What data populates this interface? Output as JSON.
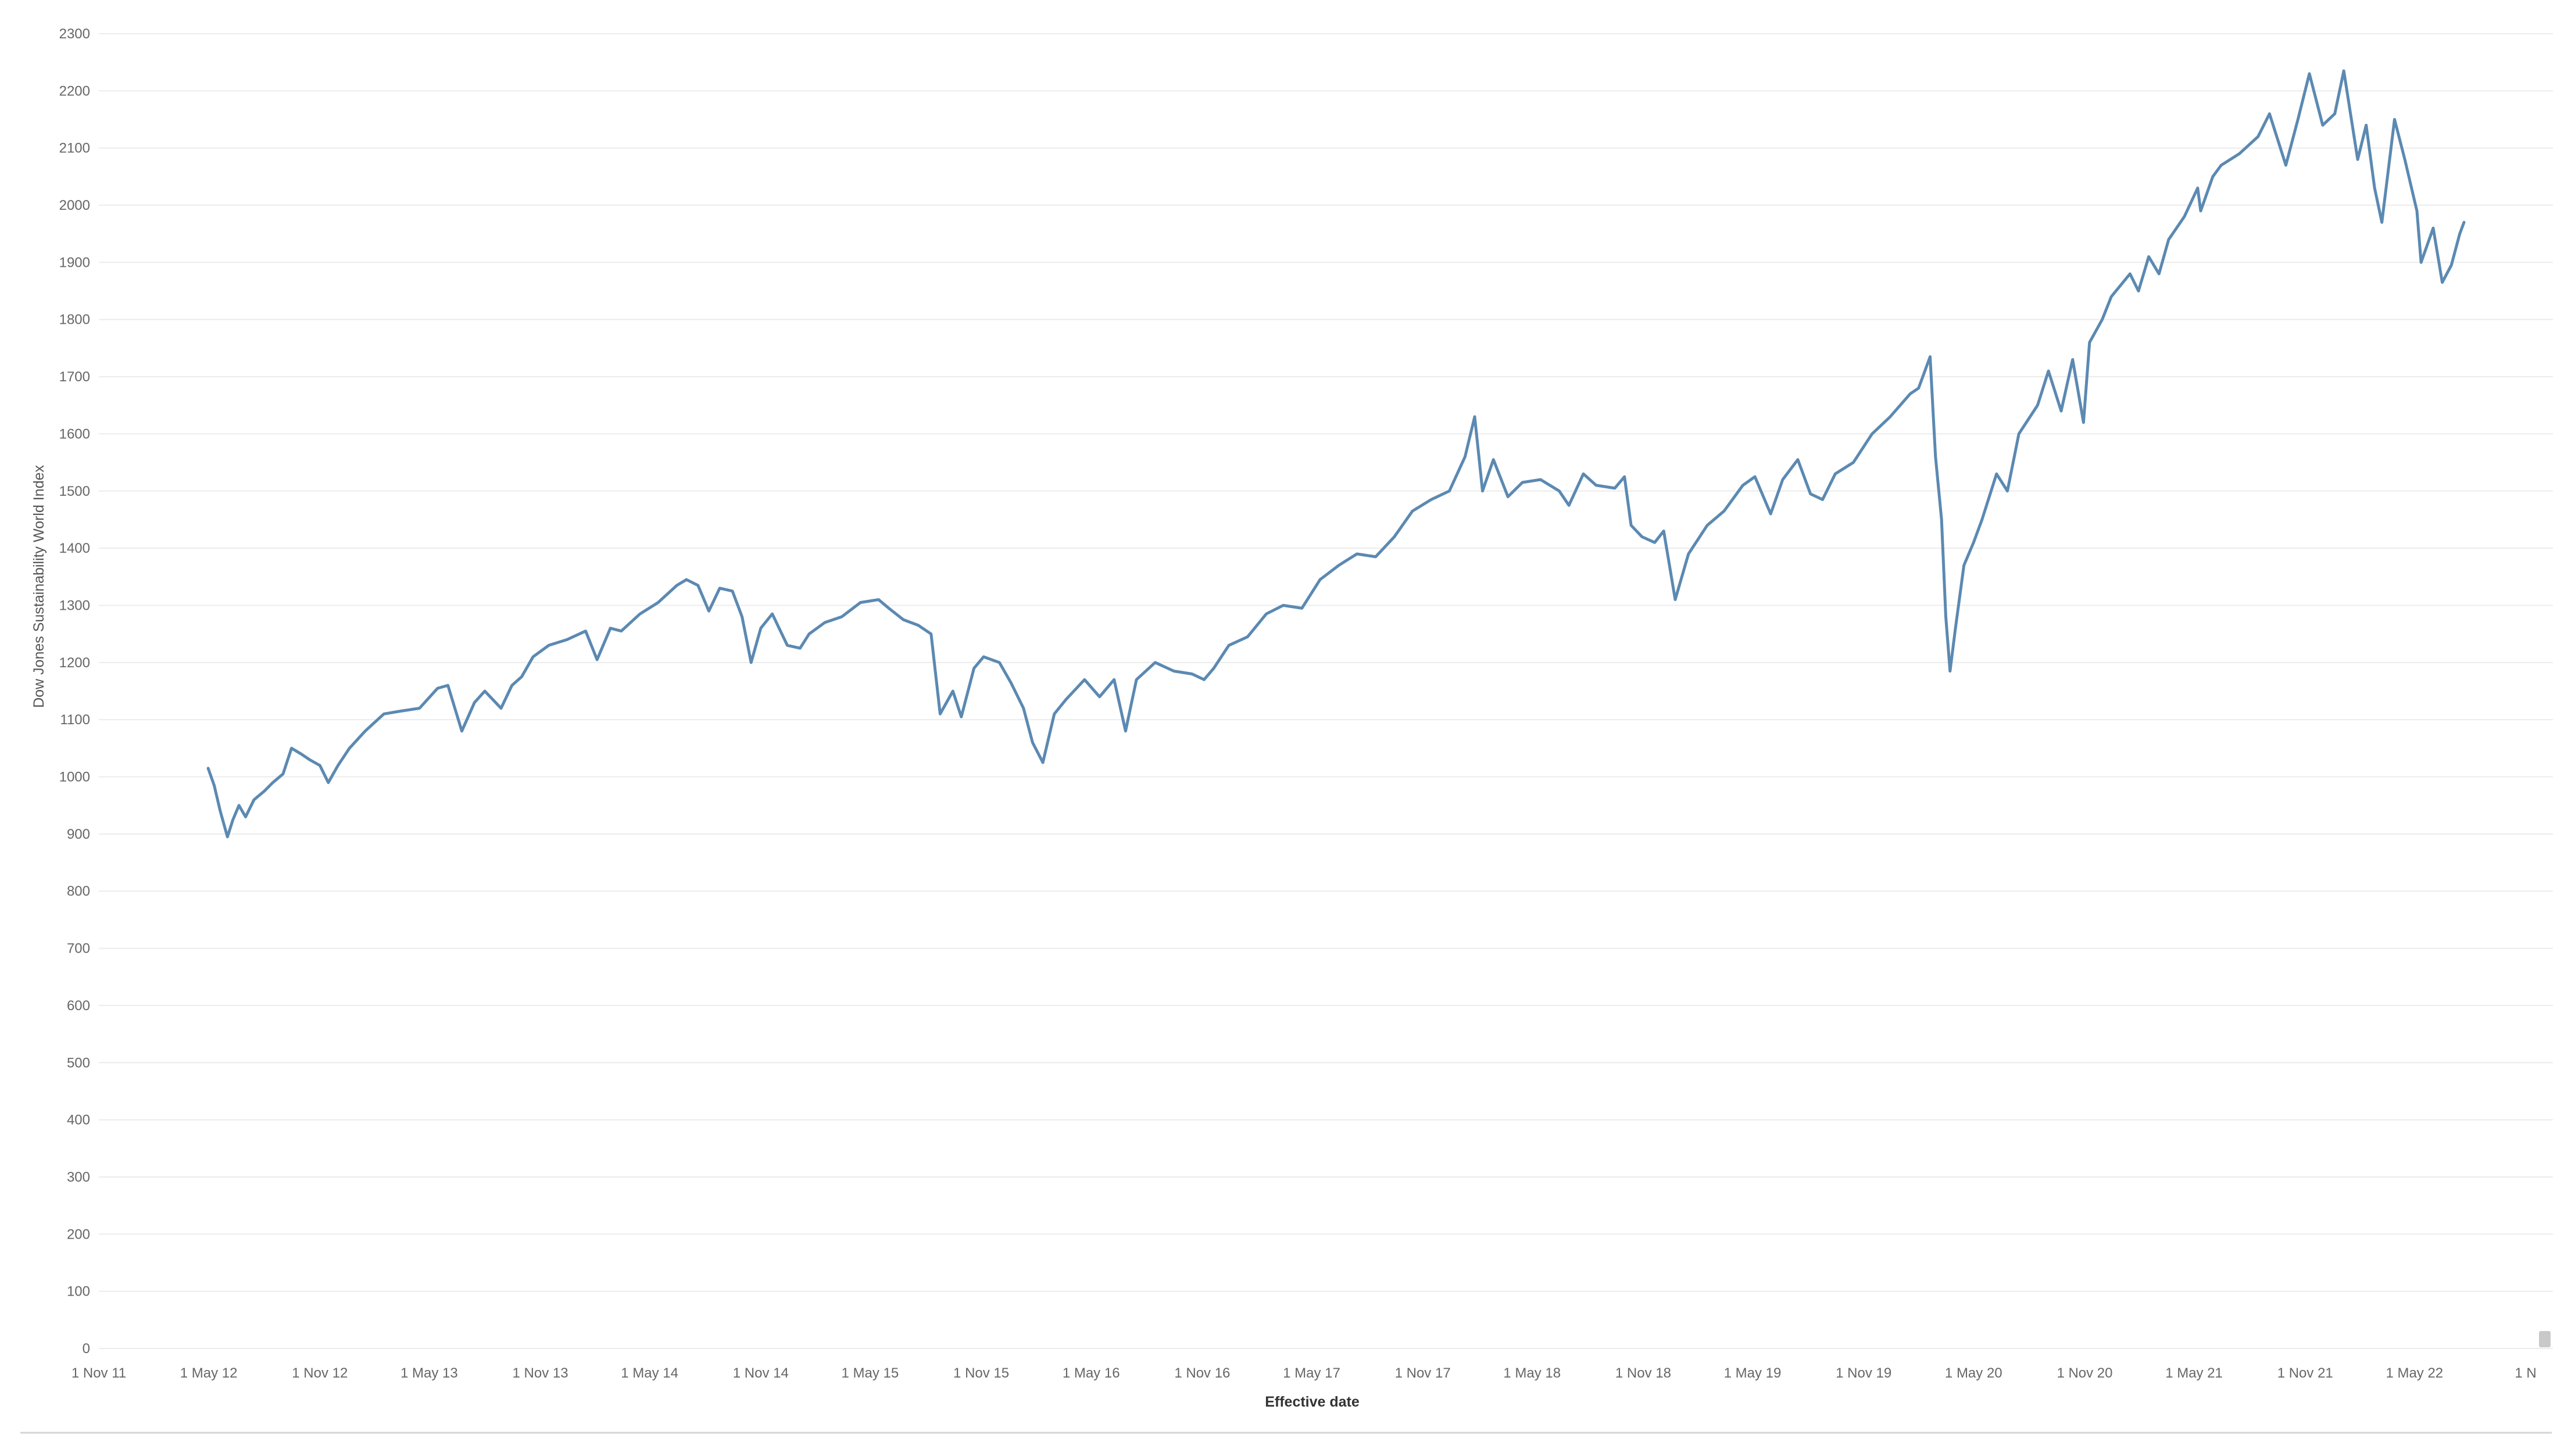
{
  "chart_data": {
    "type": "line",
    "xlabel": "Effective date",
    "ylabel": "Dow Jones Sustainability World Index",
    "ylim": [
      0,
      2300
    ],
    "y_ticks": [
      0,
      100,
      200,
      300,
      400,
      500,
      600,
      700,
      800,
      900,
      1000,
      1100,
      1200,
      1300,
      1400,
      1500,
      1600,
      1700,
      1800,
      1900,
      2000,
      2100,
      2200,
      2300
    ],
    "x_range": [
      "2011-11-01",
      "2022-11-01"
    ],
    "x_ticks": [
      {
        "date": "2011-11-01",
        "label": "1 Nov 11"
      },
      {
        "date": "2012-05-01",
        "label": "1 May 12"
      },
      {
        "date": "2012-11-01",
        "label": "1 Nov 12"
      },
      {
        "date": "2013-05-01",
        "label": "1 May 13"
      },
      {
        "date": "2013-11-01",
        "label": "1 Nov 13"
      },
      {
        "date": "2014-05-01",
        "label": "1 May 14"
      },
      {
        "date": "2014-11-01",
        "label": "1 Nov 14"
      },
      {
        "date": "2015-05-01",
        "label": "1 May 15"
      },
      {
        "date": "2015-11-01",
        "label": "1 Nov 15"
      },
      {
        "date": "2016-05-01",
        "label": "1 May 16"
      },
      {
        "date": "2016-11-01",
        "label": "1 Nov 16"
      },
      {
        "date": "2017-05-01",
        "label": "1 May 17"
      },
      {
        "date": "2017-11-01",
        "label": "1 Nov 17"
      },
      {
        "date": "2018-05-01",
        "label": "1 May 18"
      },
      {
        "date": "2018-11-01",
        "label": "1 Nov 18"
      },
      {
        "date": "2019-05-01",
        "label": "1 May 19"
      },
      {
        "date": "2019-11-01",
        "label": "1 Nov 19"
      },
      {
        "date": "2020-05-01",
        "label": "1 May 20"
      },
      {
        "date": "2020-11-01",
        "label": "1 Nov 20"
      },
      {
        "date": "2021-05-01",
        "label": "1 May 21"
      },
      {
        "date": "2021-11-01",
        "label": "1 Nov 21"
      },
      {
        "date": "2022-05-01",
        "label": "1 May 22"
      },
      {
        "date": "2022-11-01",
        "label": "1 N"
      }
    ],
    "grid": "horizontal",
    "legend": "none",
    "color": "#5b89b2",
    "series": [
      {
        "points": [
          [
            "2012-04-30",
            1015
          ],
          [
            "2012-05-10",
            985
          ],
          [
            "2012-05-20",
            940
          ],
          [
            "2012-06-01",
            895
          ],
          [
            "2012-06-10",
            925
          ],
          [
            "2012-06-20",
            950
          ],
          [
            "2012-07-01",
            930
          ],
          [
            "2012-07-15",
            960
          ],
          [
            "2012-08-01",
            975
          ],
          [
            "2012-08-15",
            990
          ],
          [
            "2012-09-01",
            1005
          ],
          [
            "2012-09-15",
            1050
          ],
          [
            "2012-10-01",
            1040
          ],
          [
            "2012-10-15",
            1030
          ],
          [
            "2012-11-01",
            1020
          ],
          [
            "2012-11-15",
            990
          ],
          [
            "2012-12-01",
            1020
          ],
          [
            "2012-12-20",
            1050
          ],
          [
            "2013-01-15",
            1080
          ],
          [
            "2013-02-15",
            1110
          ],
          [
            "2013-03-15",
            1115
          ],
          [
            "2013-04-15",
            1120
          ],
          [
            "2013-05-15",
            1155
          ],
          [
            "2013-06-01",
            1160
          ],
          [
            "2013-06-24",
            1080
          ],
          [
            "2013-07-15",
            1130
          ],
          [
            "2013-08-01",
            1150
          ],
          [
            "2013-08-28",
            1120
          ],
          [
            "2013-09-15",
            1160
          ],
          [
            "2013-10-01",
            1175
          ],
          [
            "2013-10-20",
            1210
          ],
          [
            "2013-11-15",
            1230
          ],
          [
            "2013-12-15",
            1240
          ],
          [
            "2014-01-15",
            1255
          ],
          [
            "2014-02-03",
            1205
          ],
          [
            "2014-02-25",
            1260
          ],
          [
            "2014-03-15",
            1255
          ],
          [
            "2014-04-15",
            1285
          ],
          [
            "2014-05-15",
            1305
          ],
          [
            "2014-06-15",
            1335
          ],
          [
            "2014-07-01",
            1345
          ],
          [
            "2014-07-20",
            1335
          ],
          [
            "2014-08-07",
            1290
          ],
          [
            "2014-08-25",
            1330
          ],
          [
            "2014-09-15",
            1325
          ],
          [
            "2014-10-01",
            1280
          ],
          [
            "2014-10-16",
            1200
          ],
          [
            "2014-11-01",
            1260
          ],
          [
            "2014-11-20",
            1285
          ],
          [
            "2014-12-15",
            1230
          ],
          [
            "2015-01-05",
            1225
          ],
          [
            "2015-01-20",
            1250
          ],
          [
            "2015-02-15",
            1270
          ],
          [
            "2015-03-15",
            1280
          ],
          [
            "2015-04-15",
            1305
          ],
          [
            "2015-05-15",
            1310
          ],
          [
            "2015-06-01",
            1295
          ],
          [
            "2015-06-25",
            1275
          ],
          [
            "2015-07-20",
            1265
          ],
          [
            "2015-08-10",
            1250
          ],
          [
            "2015-08-25",
            1110
          ],
          [
            "2015-09-15",
            1150
          ],
          [
            "2015-09-29",
            1105
          ],
          [
            "2015-10-20",
            1190
          ],
          [
            "2015-11-05",
            1210
          ],
          [
            "2015-12-01",
            1200
          ],
          [
            "2015-12-20",
            1165
          ],
          [
            "2016-01-10",
            1120
          ],
          [
            "2016-01-25",
            1060
          ],
          [
            "2016-02-11",
            1025
          ],
          [
            "2016-03-01",
            1110
          ],
          [
            "2016-03-20",
            1135
          ],
          [
            "2016-04-20",
            1170
          ],
          [
            "2016-05-15",
            1140
          ],
          [
            "2016-06-08",
            1170
          ],
          [
            "2016-06-27",
            1080
          ],
          [
            "2016-07-15",
            1170
          ],
          [
            "2016-08-15",
            1200
          ],
          [
            "2016-09-15",
            1185
          ],
          [
            "2016-10-15",
            1180
          ],
          [
            "2016-11-04",
            1170
          ],
          [
            "2016-11-20",
            1190
          ],
          [
            "2016-12-15",
            1230
          ],
          [
            "2017-01-15",
            1245
          ],
          [
            "2017-02-15",
            1285
          ],
          [
            "2017-03-15",
            1300
          ],
          [
            "2017-04-15",
            1295
          ],
          [
            "2017-05-15",
            1345
          ],
          [
            "2017-06-15",
            1370
          ],
          [
            "2017-07-15",
            1390
          ],
          [
            "2017-08-15",
            1385
          ],
          [
            "2017-09-15",
            1420
          ],
          [
            "2017-10-15",
            1465
          ],
          [
            "2017-11-15",
            1485
          ],
          [
            "2017-12-15",
            1500
          ],
          [
            "2018-01-10",
            1560
          ],
          [
            "2018-01-26",
            1630
          ],
          [
            "2018-02-08",
            1500
          ],
          [
            "2018-02-26",
            1555
          ],
          [
            "2018-03-22",
            1490
          ],
          [
            "2018-04-15",
            1515
          ],
          [
            "2018-05-15",
            1520
          ],
          [
            "2018-06-15",
            1500
          ],
          [
            "2018-07-01",
            1475
          ],
          [
            "2018-07-25",
            1530
          ],
          [
            "2018-08-15",
            1510
          ],
          [
            "2018-09-15",
            1505
          ],
          [
            "2018-10-01",
            1525
          ],
          [
            "2018-10-12",
            1440
          ],
          [
            "2018-10-30",
            1420
          ],
          [
            "2018-11-20",
            1410
          ],
          [
            "2018-12-05",
            1430
          ],
          [
            "2018-12-24",
            1310
          ],
          [
            "2019-01-15",
            1390
          ],
          [
            "2019-02-15",
            1440
          ],
          [
            "2019-03-15",
            1465
          ],
          [
            "2019-04-15",
            1510
          ],
          [
            "2019-05-05",
            1525
          ],
          [
            "2019-05-31",
            1460
          ],
          [
            "2019-06-20",
            1520
          ],
          [
            "2019-07-15",
            1555
          ],
          [
            "2019-08-05",
            1495
          ],
          [
            "2019-08-25",
            1485
          ],
          [
            "2019-09-15",
            1530
          ],
          [
            "2019-10-15",
            1550
          ],
          [
            "2019-11-15",
            1600
          ],
          [
            "2019-12-15",
            1630
          ],
          [
            "2020-01-17",
            1670
          ],
          [
            "2020-01-31",
            1680
          ],
          [
            "2020-02-19",
            1735
          ],
          [
            "2020-02-28",
            1560
          ],
          [
            "2020-03-09",
            1450
          ],
          [
            "2020-03-16",
            1280
          ],
          [
            "2020-03-23",
            1185
          ],
          [
            "2020-04-01",
            1260
          ],
          [
            "2020-04-15",
            1370
          ],
          [
            "2020-05-01",
            1410
          ],
          [
            "2020-05-15",
            1450
          ],
          [
            "2020-06-08",
            1530
          ],
          [
            "2020-06-26",
            1500
          ],
          [
            "2020-07-15",
            1600
          ],
          [
            "2020-08-15",
            1650
          ],
          [
            "2020-09-02",
            1710
          ],
          [
            "2020-09-23",
            1640
          ],
          [
            "2020-10-12",
            1730
          ],
          [
            "2020-10-30",
            1620
          ],
          [
            "2020-11-09",
            1760
          ],
          [
            "2020-11-30",
            1800
          ],
          [
            "2020-12-15",
            1840
          ],
          [
            "2021-01-15",
            1880
          ],
          [
            "2021-01-29",
            1850
          ],
          [
            "2021-02-15",
            1910
          ],
          [
            "2021-03-04",
            1880
          ],
          [
            "2021-03-20",
            1940
          ],
          [
            "2021-04-15",
            1980
          ],
          [
            "2021-05-07",
            2030
          ],
          [
            "2021-05-12",
            1990
          ],
          [
            "2021-06-01",
            2050
          ],
          [
            "2021-06-15",
            2070
          ],
          [
            "2021-07-15",
            2090
          ],
          [
            "2021-08-15",
            2120
          ],
          [
            "2021-09-03",
            2160
          ],
          [
            "2021-09-30",
            2070
          ],
          [
            "2021-10-20",
            2150
          ],
          [
            "2021-11-08",
            2230
          ],
          [
            "2021-11-30",
            2140
          ],
          [
            "2021-12-20",
            2160
          ],
          [
            "2022-01-04",
            2235
          ],
          [
            "2022-01-27",
            2080
          ],
          [
            "2022-02-10",
            2140
          ],
          [
            "2022-02-24",
            2030
          ],
          [
            "2022-03-08",
            1970
          ],
          [
            "2022-03-29",
            2150
          ],
          [
            "2022-04-15",
            2080
          ],
          [
            "2022-05-05",
            1990
          ],
          [
            "2022-05-12",
            1900
          ],
          [
            "2022-06-01",
            1960
          ],
          [
            "2022-06-16",
            1865
          ],
          [
            "2022-07-01",
            1895
          ],
          [
            "2022-07-15",
            1950
          ],
          [
            "2022-07-22",
            1970
          ]
        ]
      }
    ]
  }
}
